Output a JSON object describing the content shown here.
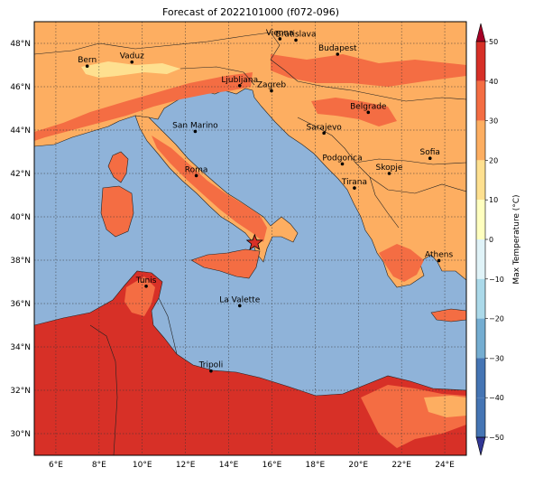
{
  "title": "Forecast of 2022101000 (f072-096)",
  "map": {
    "lon_range": [
      5,
      25
    ],
    "lat_range": [
      29,
      49
    ],
    "lon_ticks": [
      6,
      8,
      10,
      12,
      14,
      16,
      18,
      20,
      22,
      24
    ],
    "lat_ticks": [
      30,
      32,
      34,
      36,
      38,
      40,
      42,
      44,
      46,
      48
    ],
    "lon_tick_labels": [
      "6°E",
      "8°E",
      "10°E",
      "12°E",
      "14°E",
      "16°E",
      "18°E",
      "20°E",
      "22°E",
      "24°E"
    ],
    "lat_tick_labels": [
      "30°N",
      "32°N",
      "34°N",
      "36°N",
      "38°N",
      "40°N",
      "42°N",
      "44°N",
      "46°N",
      "48°N"
    ],
    "grid": true,
    "sea_color": "#8fb3d9",
    "marker": {
      "lon": 15.2,
      "lat": 38.8,
      "shape": "star",
      "color": "#d73027"
    }
  },
  "cities": [
    {
      "name": "Bern",
      "lon": 7.45,
      "lat": 46.95
    },
    {
      "name": "Vaduz",
      "lon": 9.52,
      "lat": 47.14
    },
    {
      "name": "Vienna",
      "lon": 16.37,
      "lat": 48.21
    },
    {
      "name": "Bratislava",
      "lon": 17.11,
      "lat": 48.15
    },
    {
      "name": "Budapest",
      "lon": 19.04,
      "lat": 47.5
    },
    {
      "name": "Ljubljana",
      "lon": 14.51,
      "lat": 46.05
    },
    {
      "name": "Zagreb",
      "lon": 15.98,
      "lat": 45.81
    },
    {
      "name": "Belgrade",
      "lon": 20.46,
      "lat": 44.82
    },
    {
      "name": "San Marino",
      "lon": 12.45,
      "lat": 43.94
    },
    {
      "name": "Sarajevo",
      "lon": 18.41,
      "lat": 43.86
    },
    {
      "name": "Podgorica",
      "lon": 19.26,
      "lat": 42.44
    },
    {
      "name": "Skopje",
      "lon": 21.43,
      "lat": 42.0
    },
    {
      "name": "Sofia",
      "lon": 23.32,
      "lat": 42.7
    },
    {
      "name": "Roma",
      "lon": 12.5,
      "lat": 41.9
    },
    {
      "name": "Tirana",
      "lon": 19.82,
      "lat": 41.33
    },
    {
      "name": "Athens",
      "lon": 23.73,
      "lat": 37.98
    },
    {
      "name": "Tunis",
      "lon": 10.18,
      "lat": 36.8
    },
    {
      "name": "La Valette",
      "lon": 14.51,
      "lat": 35.9
    },
    {
      "name": "Tripoli",
      "lon": 13.18,
      "lat": 32.89
    }
  ],
  "colorbar": {
    "label": "Max Temperature (°C)",
    "ticks": [
      50,
      40,
      30,
      20,
      10,
      0,
      -10,
      -20,
      -30,
      -40,
      -50
    ],
    "tick_labels": [
      "50",
      "40",
      "30",
      "20",
      "10",
      "0",
      "−10",
      "−20",
      "−30",
      "−40",
      "−50"
    ],
    "colors_top_to_bottom": [
      "#a50026",
      "#d73027",
      "#f46d43",
      "#fdae61",
      "#fee090",
      "#ffffbf",
      "#e0f3f8",
      "#abd9e9",
      "#74add1",
      "#4575b4",
      "#313695"
    ],
    "extend": "both"
  }
}
